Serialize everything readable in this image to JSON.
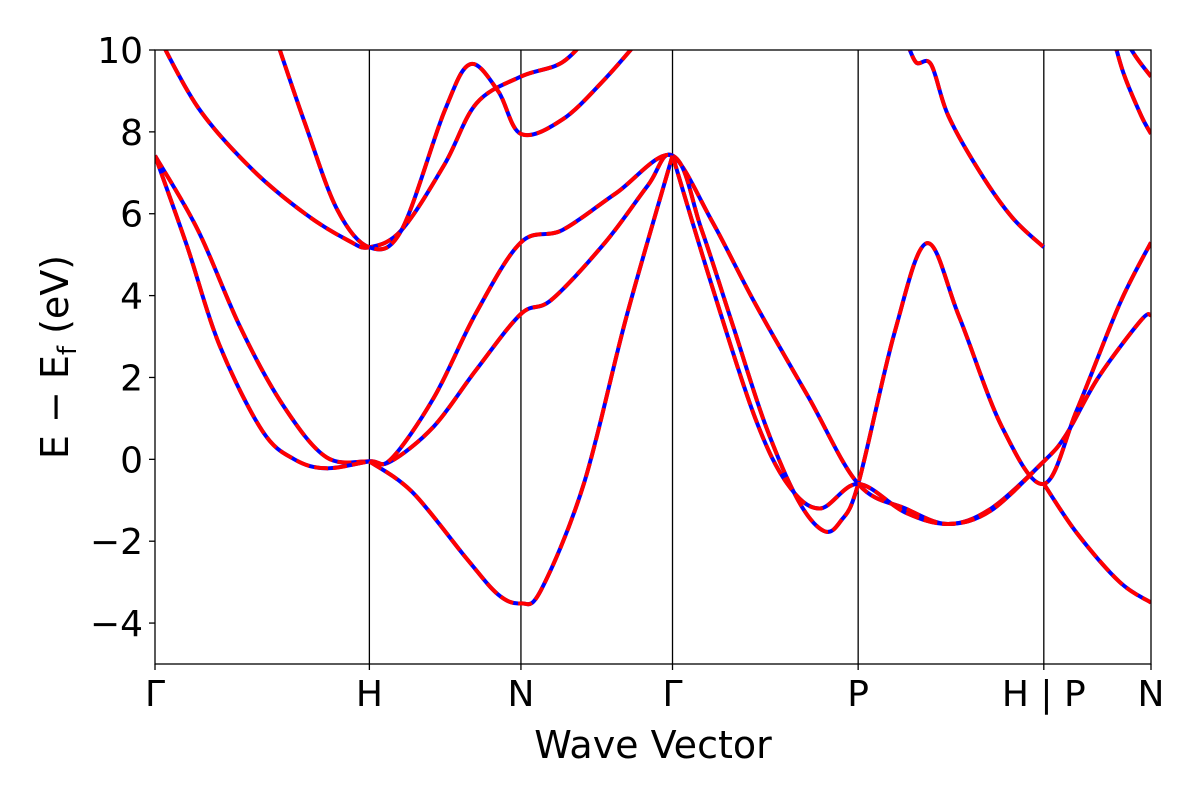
{
  "chart_data": {
    "type": "line",
    "xlabel": "Wave Vector",
    "ylabel": {
      "main": "E − E",
      "sub": "f",
      "unit": " (eV)"
    },
    "ylim": [
      -5,
      10
    ],
    "y_ticks": [
      {
        "value": 10,
        "label": "10"
      },
      {
        "value": 8,
        "label": "8"
      },
      {
        "value": 6,
        "label": "6"
      },
      {
        "value": 4,
        "label": "4"
      },
      {
        "value": 2,
        "label": "2"
      },
      {
        "value": 0,
        "label": "0"
      },
      {
        "value": -2,
        "label": "−2"
      },
      {
        "value": -4,
        "label": "−4"
      }
    ],
    "kpoints": [
      {
        "label": "Γ",
        "x": 0.0
      },
      {
        "label": "H",
        "x": 1.0
      },
      {
        "label": "N",
        "x": 1.707
      },
      {
        "label": "Γ",
        "x": 2.414
      },
      {
        "label": "P",
        "x": 3.28
      },
      {
        "label": "H | P",
        "x": 4.146
      },
      {
        "label": "N",
        "x": 4.646
      }
    ],
    "grid": "vertical lines at high-symmetry points",
    "line_colors": {
      "reference": "#0000ff",
      "overlay": "#ff0000"
    },
    "line_styles": {
      "reference": "solid",
      "overlay": "dashed"
    },
    "series": [
      {
        "values": [
          [
            0,
            7.42
          ],
          [
            0.2,
            5.6
          ],
          [
            0.4,
            3.2
          ],
          [
            0.6,
            1.3
          ],
          [
            0.8,
            0.05
          ],
          [
            1.0,
            -0.05
          ],
          [
            1.1,
            -0.05
          ],
          [
            1.3,
            0.8
          ],
          [
            1.5,
            2.2
          ],
          [
            1.707,
            3.55
          ],
          [
            1.85,
            3.9
          ],
          [
            2.1,
            5.3
          ],
          [
            2.3,
            6.7
          ],
          [
            2.414,
            7.42
          ],
          [
            2.6,
            5.8
          ],
          [
            2.8,
            3.8
          ],
          [
            3.05,
            1.5
          ],
          [
            3.28,
            -0.6
          ],
          [
            3.5,
            -1.2
          ],
          [
            3.7,
            -1.58
          ],
          [
            3.9,
            -1.2
          ],
          [
            4.146,
            -0.05
          ],
          [
            4.25,
            0.6
          ],
          [
            4.4,
            2.0
          ],
          [
            4.6,
            3.4
          ],
          [
            4.646,
            3.52
          ]
        ]
      },
      {
        "values": [
          [
            0,
            7.42
          ],
          [
            0.15,
            5.2
          ],
          [
            0.3,
            2.8
          ],
          [
            0.5,
            0.7
          ],
          [
            0.65,
            0.0
          ],
          [
            0.8,
            -0.22
          ],
          [
            1.0,
            -0.05
          ],
          [
            1.1,
            0.0
          ],
          [
            1.3,
            1.5
          ],
          [
            1.5,
            3.6
          ],
          [
            1.707,
            5.3
          ],
          [
            1.9,
            5.6
          ],
          [
            2.15,
            6.5
          ],
          [
            2.414,
            7.42
          ],
          [
            2.55,
            5.6
          ],
          [
            2.7,
            3.2
          ],
          [
            2.85,
            0.8
          ],
          [
            3.0,
            -1.0
          ],
          [
            3.12,
            -1.75
          ],
          [
            3.2,
            -1.5
          ],
          [
            3.28,
            -0.6
          ],
          [
            3.45,
            3.1
          ],
          [
            3.6,
            5.28
          ],
          [
            3.75,
            3.5
          ],
          [
            3.95,
            0.8
          ],
          [
            4.146,
            -0.6
          ],
          [
            4.3,
            1.2
          ],
          [
            4.5,
            3.8
          ],
          [
            4.646,
            5.3
          ]
        ]
      },
      {
        "values": [
          [
            0,
            10.5
          ],
          [
            0.2,
            8.6
          ],
          [
            0.45,
            7.1
          ],
          [
            0.7,
            6.0
          ],
          [
            0.9,
            5.35
          ],
          [
            1.0,
            5.18
          ],
          [
            1.15,
            5.6
          ],
          [
            1.35,
            7.2
          ],
          [
            1.5,
            8.7
          ],
          [
            1.707,
            9.35
          ],
          [
            1.9,
            9.7
          ],
          [
            2.05,
            10.5
          ]
        ]
      },
      {
        "values": [
          [
            0.55,
            10.5
          ],
          [
            0.7,
            8.2
          ],
          [
            0.85,
            6.1
          ],
          [
            1.0,
            5.18
          ],
          [
            1.15,
            5.6
          ],
          [
            1.35,
            8.5
          ],
          [
            1.47,
            9.65
          ],
          [
            1.6,
            9.0
          ],
          [
            1.707,
            7.95
          ],
          [
            1.9,
            8.3
          ],
          [
            2.1,
            9.3
          ],
          [
            2.3,
            10.5
          ]
        ]
      },
      {
        "values": [
          [
            2.414,
            7.42
          ],
          [
            2.6,
            4.2
          ],
          [
            2.8,
            1.0
          ],
          [
            2.95,
            -0.6
          ],
          [
            3.1,
            -1.2
          ],
          [
            3.28,
            -0.6
          ],
          [
            3.5,
            -1.3
          ],
          [
            3.7,
            -1.58
          ],
          [
            3.9,
            -1.25
          ],
          [
            4.146,
            -0.05
          ]
        ]
      },
      {
        "values": [
          [
            1.0,
            -0.05
          ],
          [
            1.2,
            -0.8
          ],
          [
            1.45,
            -2.4
          ],
          [
            1.6,
            -3.3
          ],
          [
            1.707,
            -3.52
          ],
          [
            1.8,
            -3.2
          ],
          [
            2.0,
            -0.6
          ],
          [
            2.2,
            3.5
          ],
          [
            2.414,
            7.42
          ]
        ]
      },
      {
        "values": [
          [
            4.146,
            -0.6
          ],
          [
            4.3,
            -1.8
          ],
          [
            4.5,
            -3.0
          ],
          [
            4.646,
            -3.5
          ]
        ]
      },
      {
        "values": [
          [
            3.5,
            10.3
          ],
          [
            3.55,
            9.7
          ],
          [
            3.62,
            9.65
          ],
          [
            3.7,
            8.4
          ],
          [
            3.85,
            7.0
          ],
          [
            4.0,
            5.9
          ],
          [
            4.146,
            5.18
          ]
        ]
      },
      {
        "values": [
          [
            4.47,
            10.3
          ],
          [
            4.52,
            9.4
          ],
          [
            4.6,
            8.4
          ],
          [
            4.646,
            7.95
          ]
        ]
      },
      {
        "values": [
          [
            4.52,
            10.3
          ],
          [
            4.58,
            9.8
          ],
          [
            4.646,
            9.35
          ]
        ]
      }
    ]
  }
}
